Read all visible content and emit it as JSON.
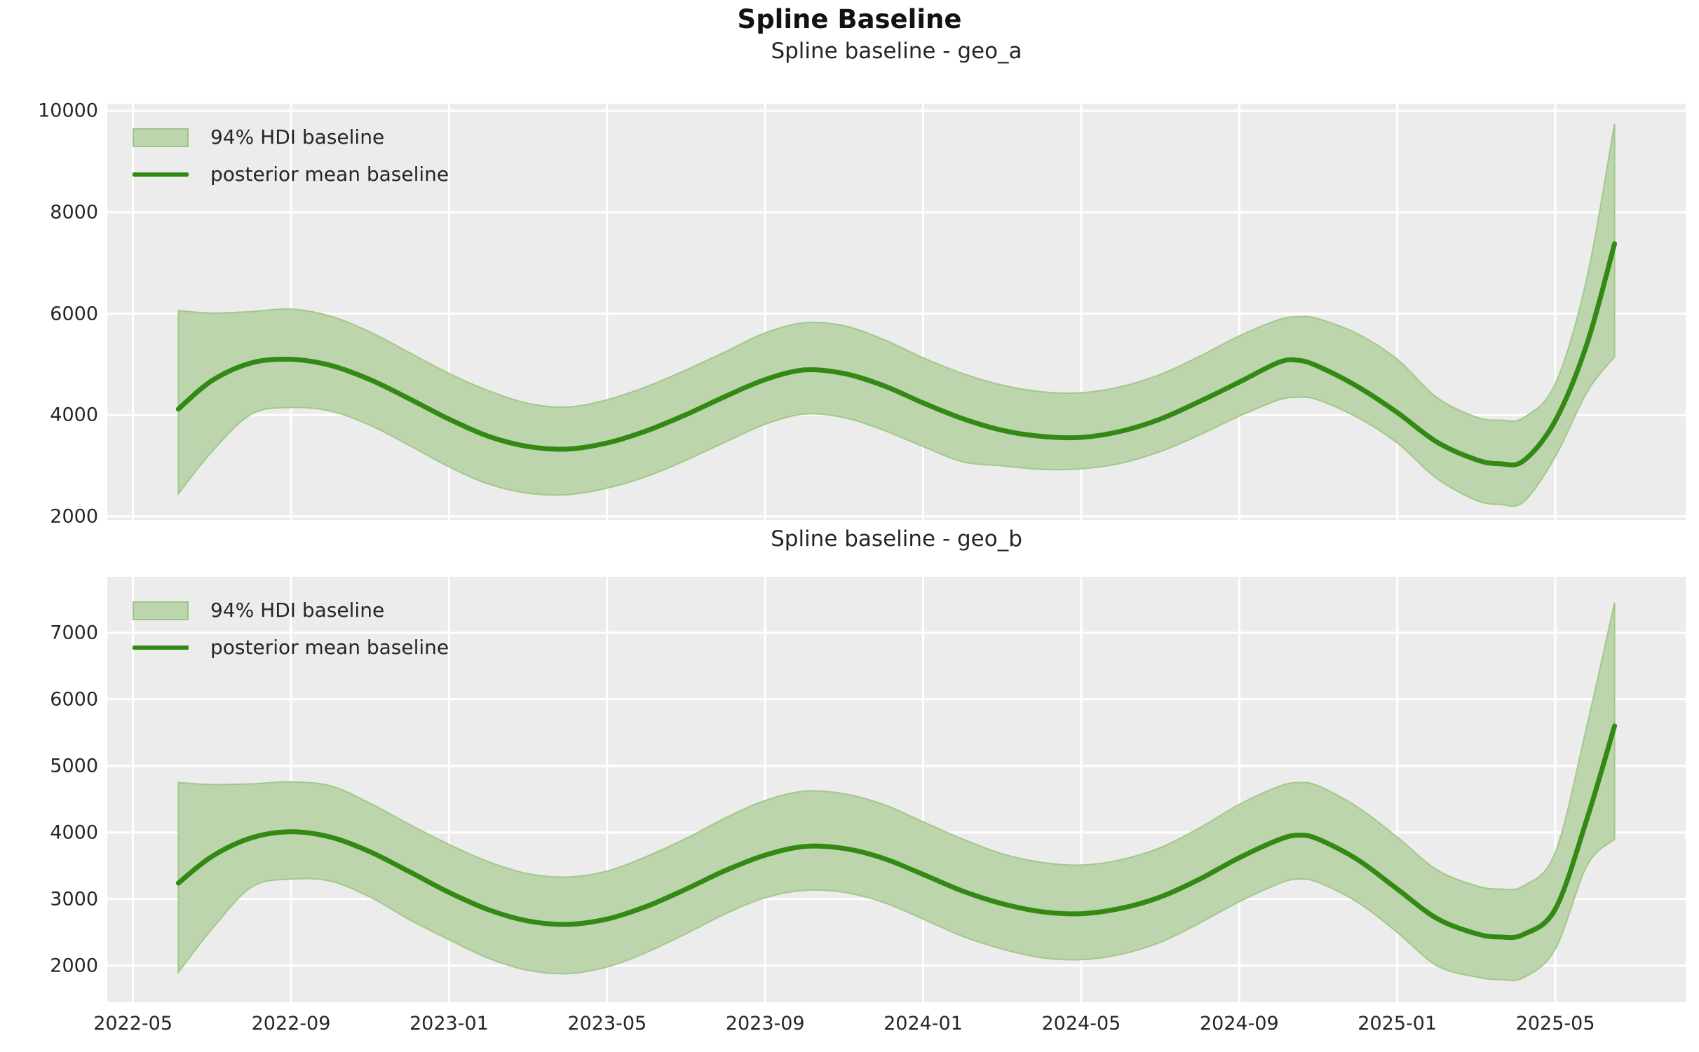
{
  "figure": {
    "suptitle": "Spline Baseline"
  },
  "style": {
    "axes_background": "#ececec",
    "grid_color": "#ffffff",
    "mean_line_color": "#328a14",
    "band_fill_color": "#bdd5ac",
    "band_edge_color": "#9cc584",
    "text_color": "#262626",
    "title_color": "#121212"
  },
  "legend": {
    "hdi_label": "94% HDI baseline",
    "mean_label": "posterior mean baseline"
  },
  "x_axis": {
    "unit": "months since 2022-05-01",
    "lim_months": [
      -0.65,
      39.3
    ],
    "tick_months": [
      0,
      4,
      8,
      12,
      16,
      20,
      24,
      28,
      32,
      36
    ],
    "tick_labels": [
      "2022-05",
      "2022-09",
      "2023-01",
      "2023-05",
      "2023-09",
      "2024-01",
      "2024-05",
      "2024-09",
      "2025-01",
      "2025-05"
    ]
  },
  "chart_data": [
    {
      "type": "area",
      "title": "Spline baseline - geo_a",
      "geo": "geo_a",
      "ylim": [
        1930,
        10140
      ],
      "yticks": [
        2000,
        4000,
        6000,
        8000,
        10000
      ],
      "grid": true,
      "legend_position": "upper left",
      "x_months": [
        1.15,
        2,
        3,
        4,
        5,
        6,
        7,
        8,
        9,
        10,
        11,
        12,
        13,
        14,
        15,
        16,
        17,
        18,
        19,
        20,
        21,
        22,
        23,
        24,
        25,
        26,
        27,
        28,
        29,
        29.5,
        30,
        31,
        32,
        33,
        34,
        34.6,
        35.2,
        36,
        36.8,
        37.5
      ],
      "series": [
        {
          "name": "posterior mean baseline",
          "values": [
            4120,
            4680,
            5030,
            5100,
            4980,
            4700,
            4320,
            3920,
            3580,
            3380,
            3330,
            3450,
            3690,
            4010,
            4370,
            4700,
            4890,
            4820,
            4580,
            4240,
            3930,
            3700,
            3580,
            3560,
            3680,
            3920,
            4270,
            4650,
            5040,
            5080,
            4960,
            4560,
            4050,
            3470,
            3120,
            3040,
            3100,
            3890,
            5400,
            7380
          ]
        },
        {
          "name": "94% HDI upper",
          "values": [
            6060,
            6010,
            6040,
            6090,
            5950,
            5640,
            5230,
            4820,
            4480,
            4230,
            4160,
            4300,
            4560,
            4890,
            5250,
            5620,
            5820,
            5760,
            5490,
            5130,
            4820,
            4590,
            4460,
            4440,
            4560,
            4800,
            5160,
            5560,
            5880,
            5940,
            5900,
            5600,
            5100,
            4350,
            3960,
            3900,
            3950,
            4620,
            6700,
            9750
          ]
        },
        {
          "name": "94% HDI lower",
          "values": [
            2450,
            3280,
            4020,
            4150,
            4080,
            3800,
            3400,
            2980,
            2640,
            2460,
            2430,
            2560,
            2790,
            3110,
            3470,
            3820,
            4020,
            3950,
            3700,
            3380,
            3080,
            3000,
            2930,
            2940,
            3050,
            3280,
            3610,
            3980,
            4300,
            4350,
            4300,
            3950,
            3450,
            2750,
            2320,
            2240,
            2290,
            3180,
            4450,
            5150
          ]
        }
      ]
    },
    {
      "type": "area",
      "title": "Spline baseline - geo_b",
      "geo": "geo_b",
      "ylim": [
        1450,
        7840
      ],
      "yticks": [
        2000,
        3000,
        4000,
        5000,
        6000,
        7000
      ],
      "grid": true,
      "legend_position": "upper left",
      "x_months": [
        1.15,
        2,
        3,
        4,
        5,
        6,
        7,
        8,
        9,
        10,
        11,
        12,
        13,
        14,
        15,
        16,
        17,
        18,
        19,
        20,
        21,
        22,
        23,
        24,
        25,
        26,
        27,
        28,
        29,
        29.5,
        30,
        31,
        32,
        33,
        34,
        34.6,
        35.2,
        36,
        36.8,
        37.5
      ],
      "series": [
        {
          "name": "posterior mean baseline",
          "values": [
            3240,
            3640,
            3920,
            4010,
            3930,
            3710,
            3410,
            3100,
            2840,
            2670,
            2620,
            2700,
            2890,
            3150,
            3430,
            3660,
            3790,
            3760,
            3610,
            3370,
            3120,
            2930,
            2810,
            2780,
            2860,
            3030,
            3300,
            3620,
            3890,
            3960,
            3900,
            3590,
            3150,
            2710,
            2480,
            2430,
            2470,
            2850,
            4200,
            5600
          ]
        },
        {
          "name": "94% HDI upper",
          "values": [
            4750,
            4720,
            4730,
            4760,
            4700,
            4440,
            4120,
            3820,
            3560,
            3380,
            3330,
            3420,
            3640,
            3910,
            4220,
            4480,
            4620,
            4580,
            4420,
            4160,
            3900,
            3680,
            3550,
            3510,
            3590,
            3770,
            4070,
            4420,
            4690,
            4750,
            4700,
            4380,
            3930,
            3440,
            3200,
            3150,
            3200,
            3700,
            5600,
            7450
          ]
        },
        {
          "name": "94% HDI lower",
          "values": [
            1900,
            2550,
            3180,
            3300,
            3270,
            3030,
            2690,
            2390,
            2110,
            1930,
            1880,
            1980,
            2200,
            2480,
            2780,
            3020,
            3130,
            3100,
            2950,
            2700,
            2440,
            2250,
            2120,
            2090,
            2170,
            2350,
            2640,
            2960,
            3230,
            3300,
            3250,
            2950,
            2500,
            2000,
            1830,
            1790,
            1820,
            2250,
            3500,
            3900
          ]
        }
      ]
    }
  ]
}
